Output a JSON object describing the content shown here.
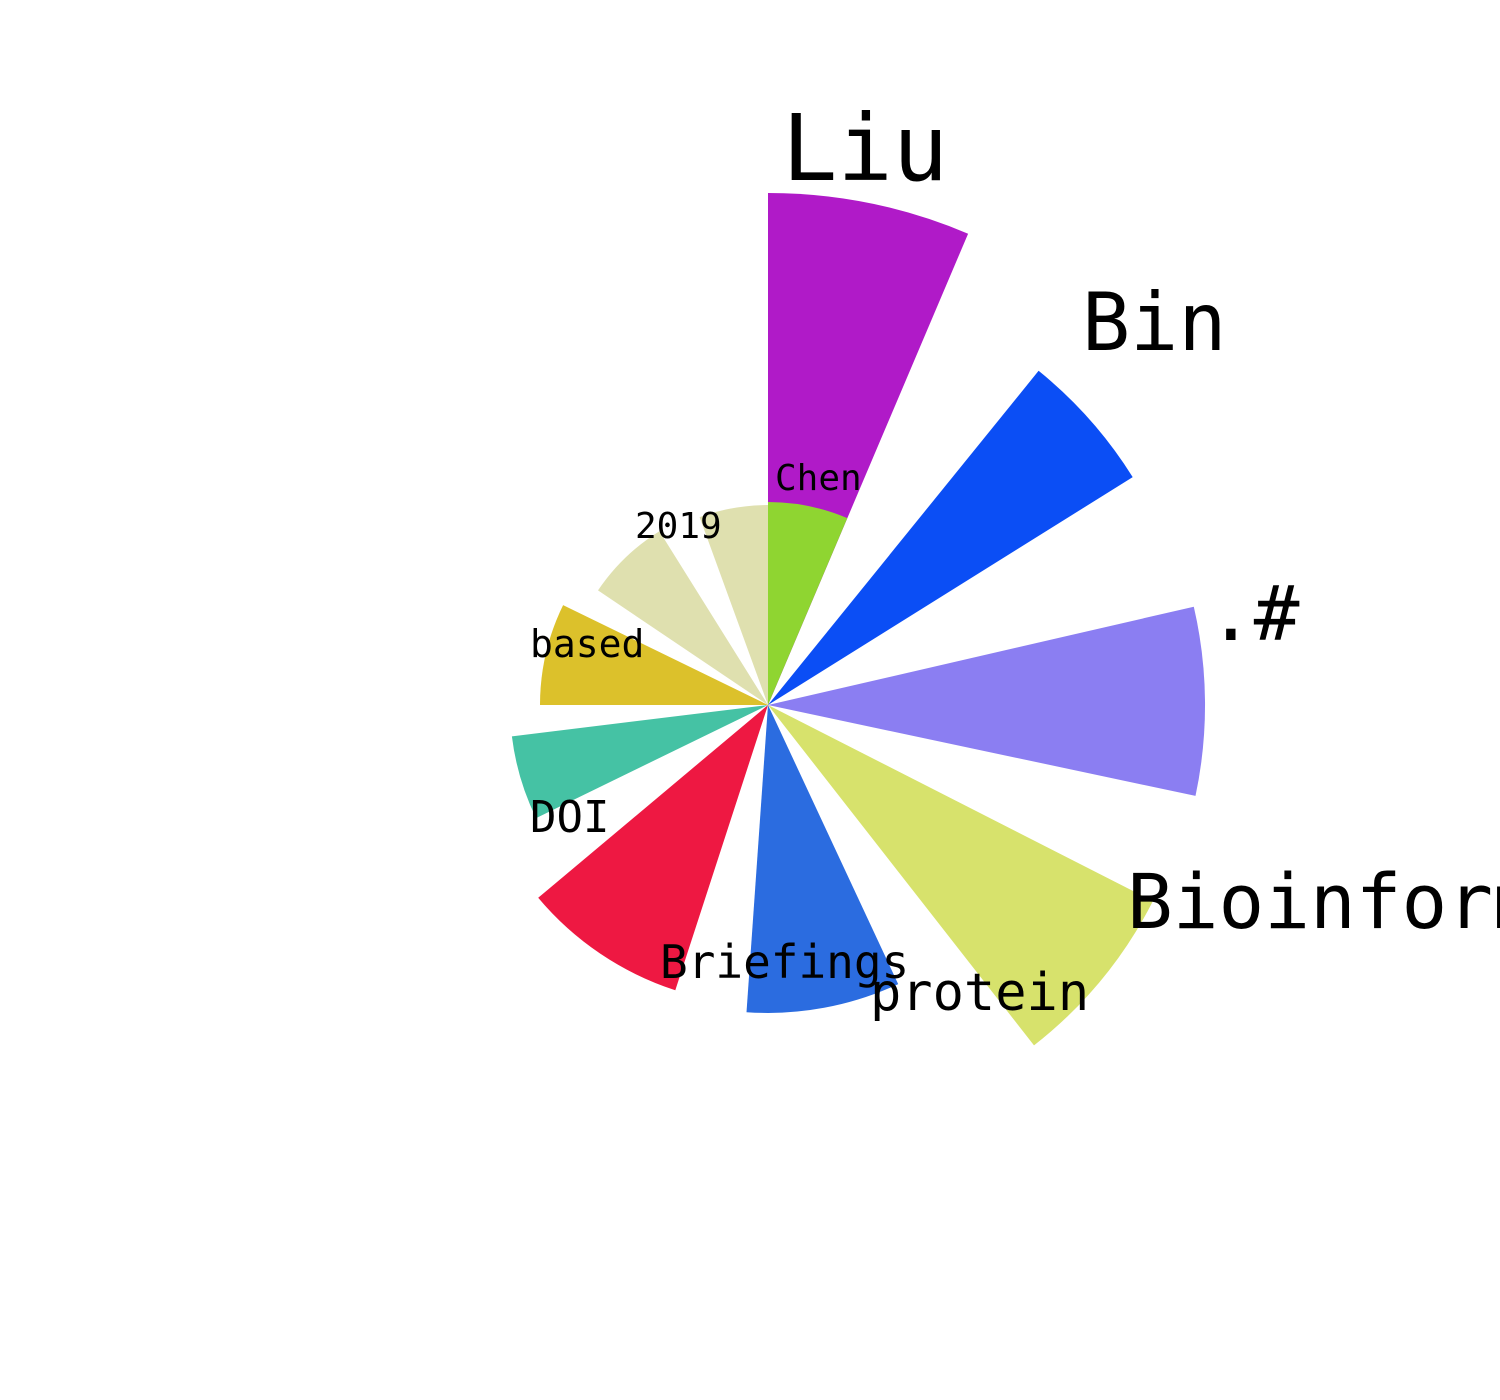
{
  "chart_data": {
    "type": "nightingale_rose",
    "categories": [
      "Chen",
      "Bin",
      ".#",
      "Bioinformatics",
      "protein",
      "Briefings",
      "",
      "DOI",
      "based",
      "2019"
    ],
    "values": [
      200,
      420,
      430,
      385,
      335,
      310,
      285,
      255,
      230,
      200
    ],
    "colors": [
      "#b01ac8",
      "#0b4ef5",
      "#8b7ef2",
      "#d7e26c",
      "#2b6ce0",
      "#ee1842",
      "#45c2a4",
      "#dcc12b",
      "#dfe0af"
    ],
    "inner_slice": {
      "label": "Chen",
      "value": 200,
      "color": "#8fd531"
    },
    "outer_label": "Liu",
    "grid": false,
    "legend": "none"
  }
}
